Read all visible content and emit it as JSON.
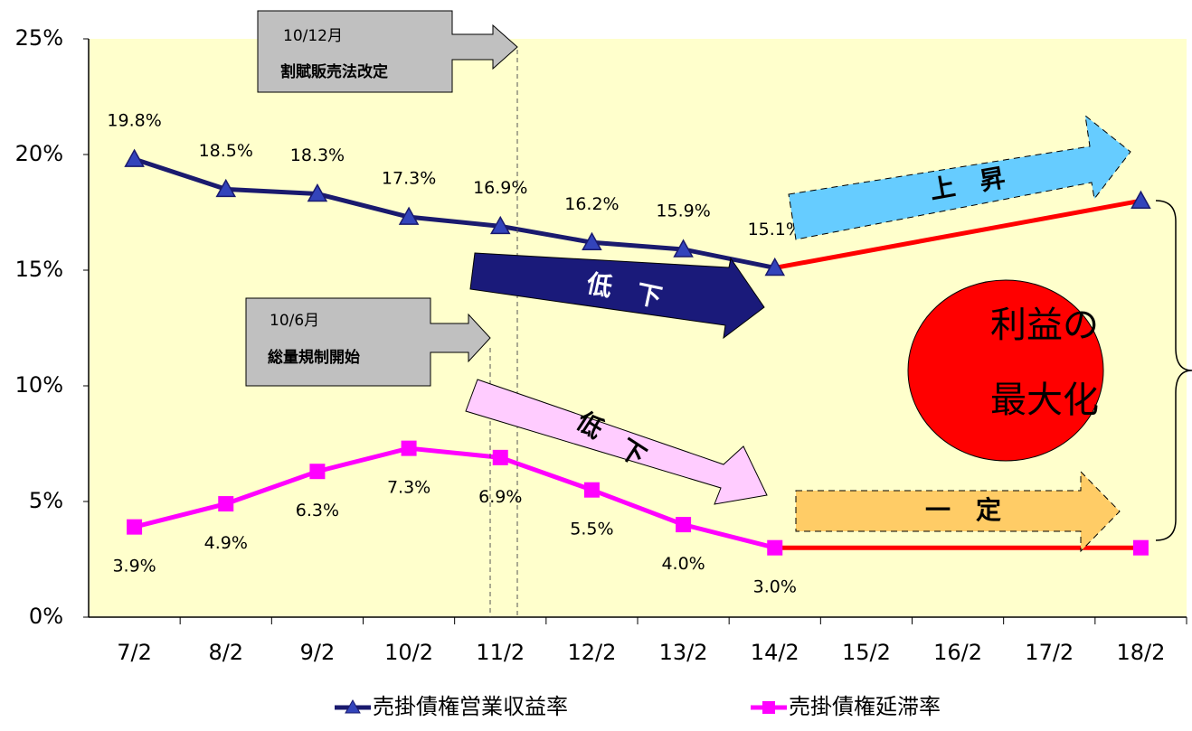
{
  "chart_data": {
    "type": "line",
    "categories": [
      "7/2",
      "8/2",
      "9/2",
      "10/2",
      "11/2",
      "12/2",
      "13/2",
      "14/2",
      "15/2",
      "16/2",
      "17/2",
      "18/2"
    ],
    "ylim": [
      0,
      25
    ],
    "yticks": [
      {
        "value": 0,
        "label": "0%"
      },
      {
        "value": 5,
        "label": "5%"
      },
      {
        "value": 10,
        "label": "10%"
      },
      {
        "value": 15,
        "label": "15%"
      },
      {
        "value": 20,
        "label": "20%"
      },
      {
        "value": 25,
        "label": "25%"
      }
    ],
    "plot_background": "#ffffcc",
    "bridge_color": "#ff0000",
    "series": [
      {
        "name": "売掛債権営業収益率",
        "color": "#1a1a6e",
        "marker": "triangle",
        "marker_color": "#3344bb",
        "values": [
          19.8,
          18.5,
          18.3,
          17.3,
          16.9,
          16.2,
          15.9,
          15.1,
          null,
          null,
          null,
          18
        ],
        "value_labels": [
          "19.8%",
          "18.5%",
          "18.3%",
          "17.3%",
          "16.9%",
          "16.2%",
          "15.9%",
          "15.1%",
          null,
          null,
          null,
          null
        ]
      },
      {
        "name": "売掛債権延滞率",
        "color": "#ff00ff",
        "marker": "square",
        "marker_color": "#ff00ff",
        "values": [
          3.9,
          4.9,
          6.3,
          7.3,
          6.9,
          5.5,
          4.0,
          3.0,
          null,
          null,
          null,
          3.0
        ],
        "value_labels": [
          "3.9%",
          "4.9%",
          "6.3%",
          "7.3%",
          "6.9%",
          "5.5%",
          "4.0%",
          "3.0%",
          null,
          null,
          null,
          null
        ]
      }
    ],
    "annotations": {
      "notes": [
        {
          "date": "10/12月",
          "label": "割賦販売法改定"
        },
        {
          "date": "10/6月",
          "label": "総量規制開始"
        }
      ],
      "arrows": [
        "低　下",
        "低　下",
        "上　昇",
        "一　定"
      ],
      "result": [
        "利益の",
        "最大化"
      ]
    }
  }
}
